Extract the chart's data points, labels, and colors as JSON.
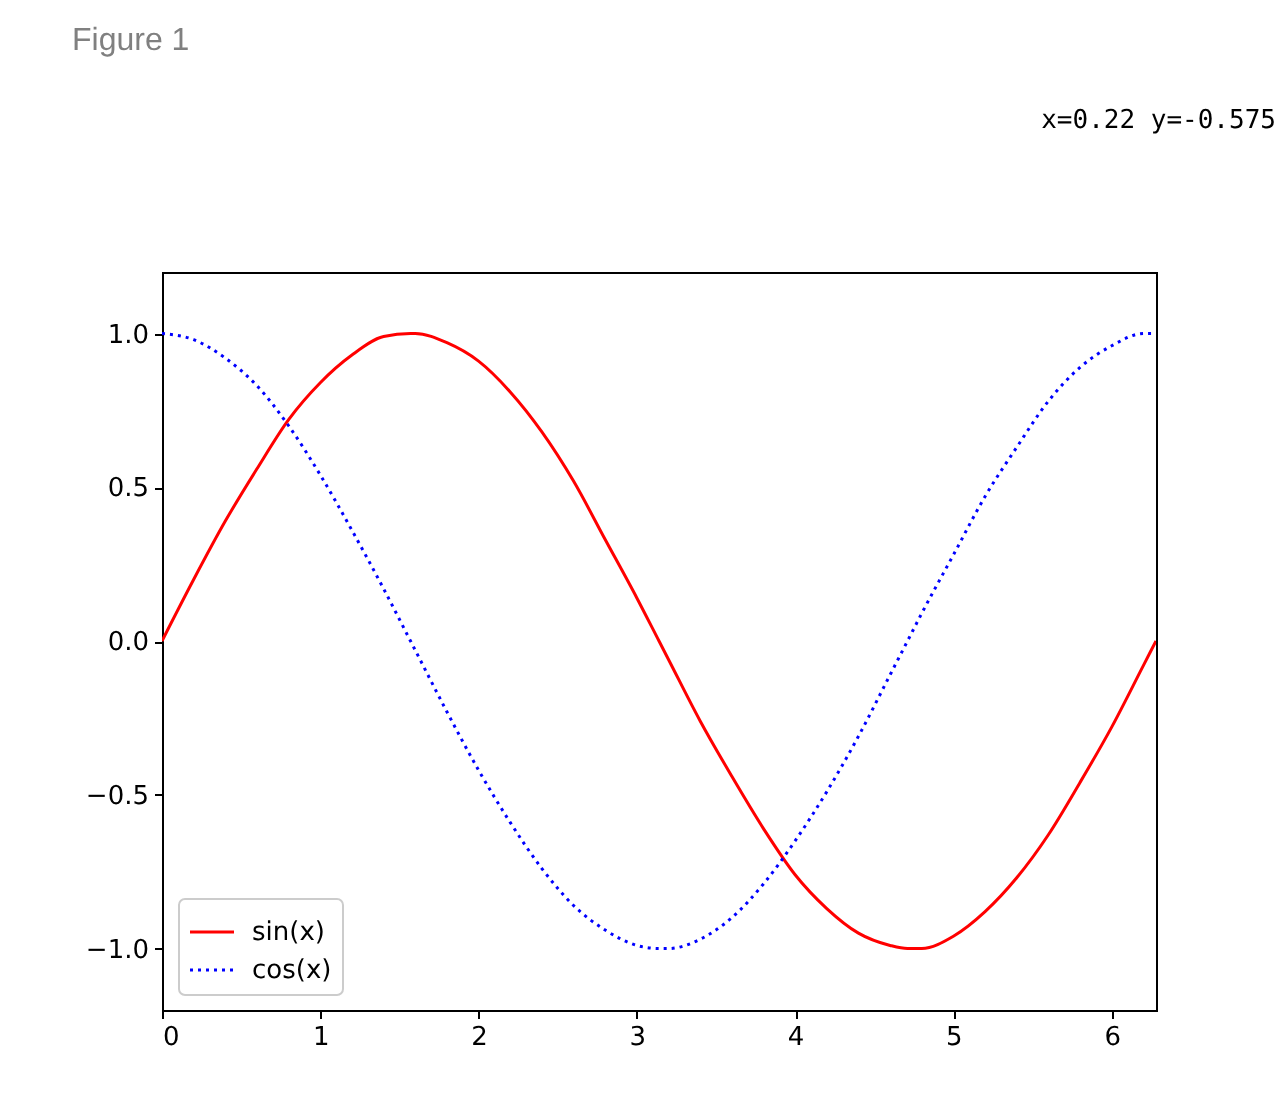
{
  "chart_data": {
    "type": "line",
    "title": "Figure 1",
    "annotations": [
      "x=0.22 y=-0.575"
    ],
    "x": [
      0,
      0.2,
      0.4,
      0.6,
      0.8,
      1.0,
      1.2,
      1.4,
      1.57,
      1.6,
      1.8,
      2.0,
      2.2,
      2.4,
      2.6,
      2.8,
      3.0,
      3.14,
      3.2,
      3.4,
      3.6,
      3.8,
      4.0,
      4.2,
      4.4,
      4.6,
      4.71,
      4.8,
      5.0,
      5.2,
      5.4,
      5.6,
      5.8,
      6.0,
      6.2,
      6.28
    ],
    "series": [
      {
        "name": "sin(x)",
        "color": "#ff0000",
        "line_style": "solid",
        "values": [
          0,
          0.2,
          0.39,
          0.56,
          0.72,
          0.84,
          0.93,
          0.99,
          1.0,
          1.0,
          0.97,
          0.91,
          0.81,
          0.68,
          0.52,
          0.33,
          0.14,
          0.0,
          -0.06,
          -0.26,
          -0.44,
          -0.61,
          -0.76,
          -0.87,
          -0.95,
          -0.99,
          -1.0,
          -1.0,
          -0.96,
          -0.88,
          -0.77,
          -0.63,
          -0.46,
          -0.28,
          -0.08,
          0.0
        ]
      },
      {
        "name": "cos(x)",
        "color": "#0000ff",
        "line_style": "dotted",
        "values": [
          1.0,
          0.98,
          0.92,
          0.83,
          0.7,
          0.54,
          0.36,
          0.17,
          0.0,
          -0.03,
          -0.23,
          -0.42,
          -0.59,
          -0.74,
          -0.86,
          -0.94,
          -0.99,
          -1.0,
          -1.0,
          -0.97,
          -0.9,
          -0.79,
          -0.65,
          -0.49,
          -0.31,
          -0.11,
          0.0,
          0.09,
          0.28,
          0.47,
          0.63,
          0.78,
          0.89,
          0.96,
          1.0,
          1.0
        ]
      }
    ],
    "xlim": [
      0,
      6.28
    ],
    "xticks": [
      0,
      1,
      2,
      3,
      4,
      5,
      6
    ],
    "ylim": [
      -1.2,
      1.2
    ],
    "yticks": [
      {
        "value": -1.0,
        "label": "−1.0"
      },
      {
        "value": -0.5,
        "label": "−0.5"
      },
      {
        "value": 0.0,
        "label": "0.0"
      },
      {
        "value": 0.5,
        "label": "0.5"
      },
      {
        "value": 1.0,
        "label": "1.0"
      }
    ],
    "grid": false,
    "legend": "bottom left",
    "marker": "none"
  }
}
